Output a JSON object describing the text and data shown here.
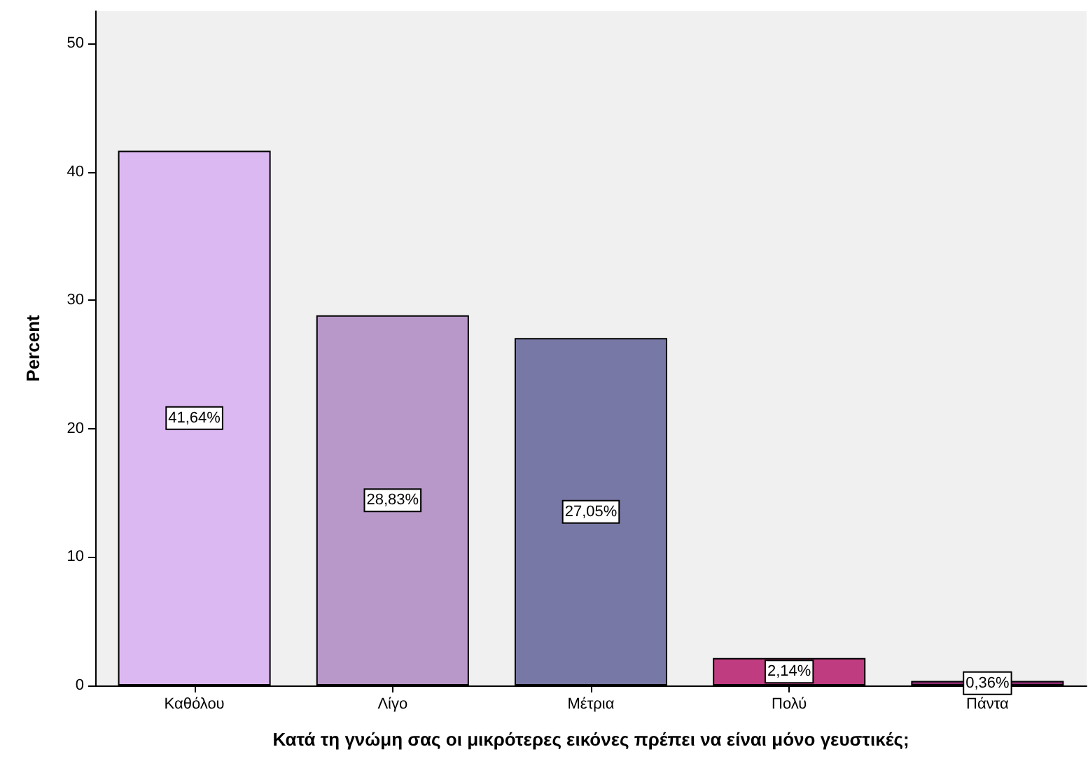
{
  "chart_data": {
    "type": "bar",
    "xlabel": "Κατά τη γνώμη σας οι μικρότερες εικόνες πρέπει να είναι μόνο γευστικές;",
    "ylabel": "Percent",
    "categories": [
      "Καθόλου",
      "Λίγο",
      "Μέτρια",
      "Πολύ",
      "Πάντα"
    ],
    "values": [
      41.64,
      28.83,
      27.05,
      2.14,
      0.36
    ],
    "colors": [
      "#dcb8f2",
      "#b898c8",
      "#7878a6",
      "#c03c80",
      "#8c2a70"
    ],
    "value_labels": [
      "41,64%",
      "28,83%",
      "27,05%",
      "2,14%",
      "0,36%"
    ],
    "ylim": [
      0,
      52.5
    ],
    "yticks": [
      0,
      10,
      20,
      30,
      40,
      50
    ],
    "grid": false
  }
}
